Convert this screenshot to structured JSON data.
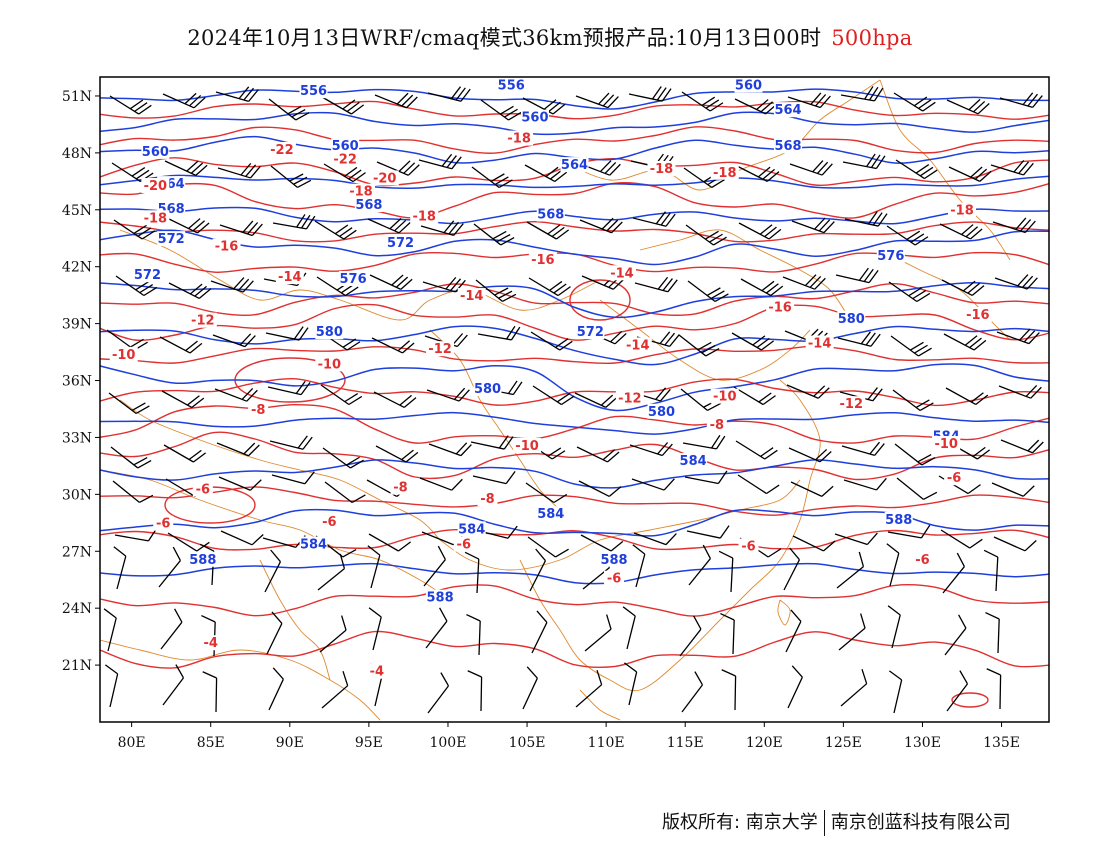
{
  "title": {
    "main": "2024年10月13日WRF/cmaq模式36km预报产品:10月13日00时",
    "level": "500hpa"
  },
  "credit": {
    "left": "版权所有: 南京大学",
    "right": "南京创蓝科技有限公司"
  },
  "colors": {
    "geopotential_contour": "#1f3fdc",
    "temperature_contour": "#e03030",
    "boundary": "#e08a30",
    "wind_barb": "#000000",
    "frame": "#000000"
  },
  "map": {
    "lon_ticks": [
      "80E",
      "85E",
      "90E",
      "95E",
      "100E",
      "105E",
      "110E",
      "115E",
      "120E",
      "125E",
      "130E",
      "135E"
    ],
    "lat_ticks": [
      "51N",
      "48N",
      "45N",
      "42N",
      "39N",
      "36N",
      "33N",
      "30N",
      "27N",
      "24N",
      "21N"
    ],
    "lon_range": [
      78,
      138
    ],
    "lat_range": [
      18,
      52
    ]
  },
  "geopotential_labels": [
    {
      "text": "556",
      "lon": 91.5,
      "lat": 51.2
    },
    {
      "text": "556",
      "lon": 104,
      "lat": 51.5
    },
    {
      "text": "560",
      "lon": 119,
      "lat": 51.5
    },
    {
      "text": "560",
      "lon": 81.5,
      "lat": 48.0
    },
    {
      "text": "560",
      "lon": 93.5,
      "lat": 48.3
    },
    {
      "text": "560",
      "lon": 105.5,
      "lat": 49.8
    },
    {
      "text": "564",
      "lon": 121.5,
      "lat": 50.2
    },
    {
      "text": "564",
      "lon": 108,
      "lat": 47.3
    },
    {
      "text": "568",
      "lon": 121.5,
      "lat": 48.3
    },
    {
      "text": "564",
      "lon": 82.5,
      "lat": 46.3
    },
    {
      "text": "568",
      "lon": 95,
      "lat": 45.2
    },
    {
      "text": "568",
      "lon": 106.5,
      "lat": 44.7
    },
    {
      "text": "568",
      "lon": 82.5,
      "lat": 45.0
    },
    {
      "text": "572",
      "lon": 82.5,
      "lat": 43.4
    },
    {
      "text": "572",
      "lon": 97,
      "lat": 43.2
    },
    {
      "text": "576",
      "lon": 128,
      "lat": 42.5
    },
    {
      "text": "572",
      "lon": 81,
      "lat": 41.5
    },
    {
      "text": "576",
      "lon": 94,
      "lat": 41.3
    },
    {
      "text": "572",
      "lon": 109,
      "lat": 38.5
    },
    {
      "text": "580",
      "lon": 92.5,
      "lat": 38.5
    },
    {
      "text": "580",
      "lon": 125.5,
      "lat": 39.2
    },
    {
      "text": "580",
      "lon": 102.5,
      "lat": 35.5
    },
    {
      "text": "580",
      "lon": 113.5,
      "lat": 34.3
    },
    {
      "text": "584",
      "lon": 131.5,
      "lat": 33.0
    },
    {
      "text": "584",
      "lon": 115.5,
      "lat": 31.7
    },
    {
      "text": "584",
      "lon": 106.5,
      "lat": 28.9
    },
    {
      "text": "584",
      "lon": 101.5,
      "lat": 28.1
    },
    {
      "text": "584",
      "lon": 91.5,
      "lat": 27.3
    },
    {
      "text": "588",
      "lon": 128.5,
      "lat": 28.6
    },
    {
      "text": "588",
      "lon": 110.5,
      "lat": 26.5
    },
    {
      "text": "588",
      "lon": 84.5,
      "lat": 26.5
    },
    {
      "text": "588",
      "lon": 99.5,
      "lat": 24.5
    }
  ],
  "temperature_labels": [
    {
      "text": "-22",
      "lon": 93.5,
      "lat": 47.6
    },
    {
      "text": "-20",
      "lon": 96,
      "lat": 46.6
    },
    {
      "text": "-20",
      "lon": 81.5,
      "lat": 46.2
    },
    {
      "text": "-22",
      "lon": 89.5,
      "lat": 48.1
    },
    {
      "text": "-18",
      "lon": 104.5,
      "lat": 48.7
    },
    {
      "text": "-18",
      "lon": 94.5,
      "lat": 45.9
    },
    {
      "text": "-18",
      "lon": 81.5,
      "lat": 44.5
    },
    {
      "text": "-18",
      "lon": 113.5,
      "lat": 47.1
    },
    {
      "text": "-18",
      "lon": 117.5,
      "lat": 46.9
    },
    {
      "text": "-18",
      "lon": 98.5,
      "lat": 44.6
    },
    {
      "text": "-16",
      "lon": 86,
      "lat": 43.0
    },
    {
      "text": "-16",
      "lon": 106,
      "lat": 42.3
    },
    {
      "text": "-18",
      "lon": 132.5,
      "lat": 44.9
    },
    {
      "text": "-14",
      "lon": 111,
      "lat": 41.6
    },
    {
      "text": "-14",
      "lon": 90,
      "lat": 41.4
    },
    {
      "text": "-14",
      "lon": 101.5,
      "lat": 40.4
    },
    {
      "text": "-16",
      "lon": 121,
      "lat": 39.8
    },
    {
      "text": "-16",
      "lon": 133.5,
      "lat": 39.4
    },
    {
      "text": "-12",
      "lon": 84.5,
      "lat": 39.1
    },
    {
      "text": "-12",
      "lon": 99.5,
      "lat": 37.6
    },
    {
      "text": "-14",
      "lon": 112,
      "lat": 37.8
    },
    {
      "text": "-14",
      "lon": 123.5,
      "lat": 37.9
    },
    {
      "text": "-10",
      "lon": 79.5,
      "lat": 37.3
    },
    {
      "text": "-10",
      "lon": 92.5,
      "lat": 36.8
    },
    {
      "text": "-12",
      "lon": 111.5,
      "lat": 35.0
    },
    {
      "text": "-10",
      "lon": 117.5,
      "lat": 35.1
    },
    {
      "text": "-12",
      "lon": 125.5,
      "lat": 34.7
    },
    {
      "text": "-8",
      "lon": 88,
      "lat": 34.4
    },
    {
      "text": "-8",
      "lon": 117,
      "lat": 33.6
    },
    {
      "text": "-10",
      "lon": 105,
      "lat": 32.5
    },
    {
      "text": "-10",
      "lon": 131.5,
      "lat": 32.6
    },
    {
      "text": "-6",
      "lon": 84.5,
      "lat": 30.2
    },
    {
      "text": "-8",
      "lon": 97,
      "lat": 30.3
    },
    {
      "text": "-8",
      "lon": 102.5,
      "lat": 29.7
    },
    {
      "text": "-6",
      "lon": 132,
      "lat": 30.8
    },
    {
      "text": "-6",
      "lon": 82,
      "lat": 28.4
    },
    {
      "text": "-6",
      "lon": 92.5,
      "lat": 28.5
    },
    {
      "text": "-6",
      "lon": 101,
      "lat": 27.3
    },
    {
      "text": "-6",
      "lon": 119,
      "lat": 27.2
    },
    {
      "text": "-6",
      "lon": 110.5,
      "lat": 25.5
    },
    {
      "text": "-6",
      "lon": 130,
      "lat": 26.5
    },
    {
      "text": "-4",
      "lon": 85,
      "lat": 22.1
    },
    {
      "text": "-4",
      "lon": 95.5,
      "lat": 20.6
    }
  ]
}
